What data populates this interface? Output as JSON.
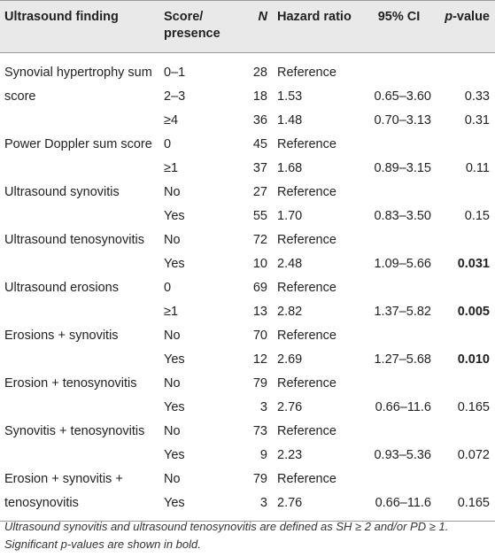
{
  "header": {
    "finding": "Ultrasound finding",
    "score_line1": "Score/",
    "score_line2": "presence",
    "n": "N",
    "hr": "Hazard ratio",
    "ci": "95% CI",
    "p_italic": "p",
    "p_rest": "-value"
  },
  "groups": [
    {
      "finding": "Synovial hypertrophy sum score",
      "rows": [
        {
          "score": "0–1",
          "n": "28",
          "hr": "Reference",
          "ci": "",
          "p": "",
          "bold": false
        },
        {
          "score": "2–3",
          "n": "18",
          "hr": "1.53",
          "ci": "0.65–3.60",
          "p": "0.33",
          "bold": false
        },
        {
          "score": "≥4",
          "n": "36",
          "hr": "1.48",
          "ci": "0.70–3.13",
          "p": "0.31",
          "bold": false
        }
      ]
    },
    {
      "finding": "Power Doppler sum score",
      "rows": [
        {
          "score": "0",
          "n": "45",
          "hr": "Reference",
          "ci": "",
          "p": "",
          "bold": false
        },
        {
          "score": "≥1",
          "n": "37",
          "hr": "1.68",
          "ci": "0.89–3.15",
          "p": "0.11",
          "bold": false
        }
      ]
    },
    {
      "finding": "Ultrasound synovitis",
      "rows": [
        {
          "score": "No",
          "n": "27",
          "hr": "Reference",
          "ci": "",
          "p": "",
          "bold": false
        },
        {
          "score": "Yes",
          "n": "55",
          "hr": "1.70",
          "ci": "0.83–3.50",
          "p": "0.15",
          "bold": false
        }
      ]
    },
    {
      "finding": "Ultrasound tenosynovitis",
      "rows": [
        {
          "score": "No",
          "n": "72",
          "hr": "Reference",
          "ci": "",
          "p": "",
          "bold": false
        },
        {
          "score": "Yes",
          "n": "10",
          "hr": "2.48",
          "ci": "1.09–5.66",
          "p": "0.031",
          "bold": true
        }
      ]
    },
    {
      "finding": "Ultrasound erosions",
      "rows": [
        {
          "score": "0",
          "n": "69",
          "hr": "Reference",
          "ci": "",
          "p": "",
          "bold": false
        },
        {
          "score": "≥1",
          "n": "13",
          "hr": "2.82",
          "ci": "1.37–5.82",
          "p": "0.005",
          "bold": true
        }
      ]
    },
    {
      "finding": "Erosions + synovitis",
      "rows": [
        {
          "score": "No",
          "n": "70",
          "hr": "Reference",
          "ci": "",
          "p": "",
          "bold": false
        },
        {
          "score": "Yes",
          "n": "12",
          "hr": "2.69",
          "ci": "1.27–5.68",
          "p": "0.010",
          "bold": true
        }
      ]
    },
    {
      "finding": "Erosion + tenosynovitis",
      "rows": [
        {
          "score": "No",
          "n": "79",
          "hr": "Reference",
          "ci": "",
          "p": "",
          "bold": false
        },
        {
          "score": "Yes",
          "n": "3",
          "hr": "2.76",
          "ci": "0.66–11.6",
          "p": "0.165",
          "bold": false
        }
      ]
    },
    {
      "finding": "Synovitis + tenosynovitis",
      "rows": [
        {
          "score": "No",
          "n": "73",
          "hr": "Reference",
          "ci": "",
          "p": "",
          "bold": false
        },
        {
          "score": "Yes",
          "n": "9",
          "hr": "2.23",
          "ci": "0.93–5.36",
          "p": "0.072",
          "bold": false
        }
      ]
    },
    {
      "finding": "Erosion + synovitis + tenosynovitis",
      "rows": [
        {
          "score": "No",
          "n": "79",
          "hr": "Reference",
          "ci": "",
          "p": "",
          "bold": false
        },
        {
          "score": "Yes",
          "n": "3",
          "hr": "2.76",
          "ci": "0.66–11.6",
          "p": "0.165",
          "bold": false
        }
      ]
    }
  ],
  "footnote": {
    "line1": "Ultrasound synovitis and ultrasound tenosynovitis are defined as SH ≥ 2 and/or PD ≥ 1.",
    "line2": "Significant p-values are shown in bold."
  }
}
